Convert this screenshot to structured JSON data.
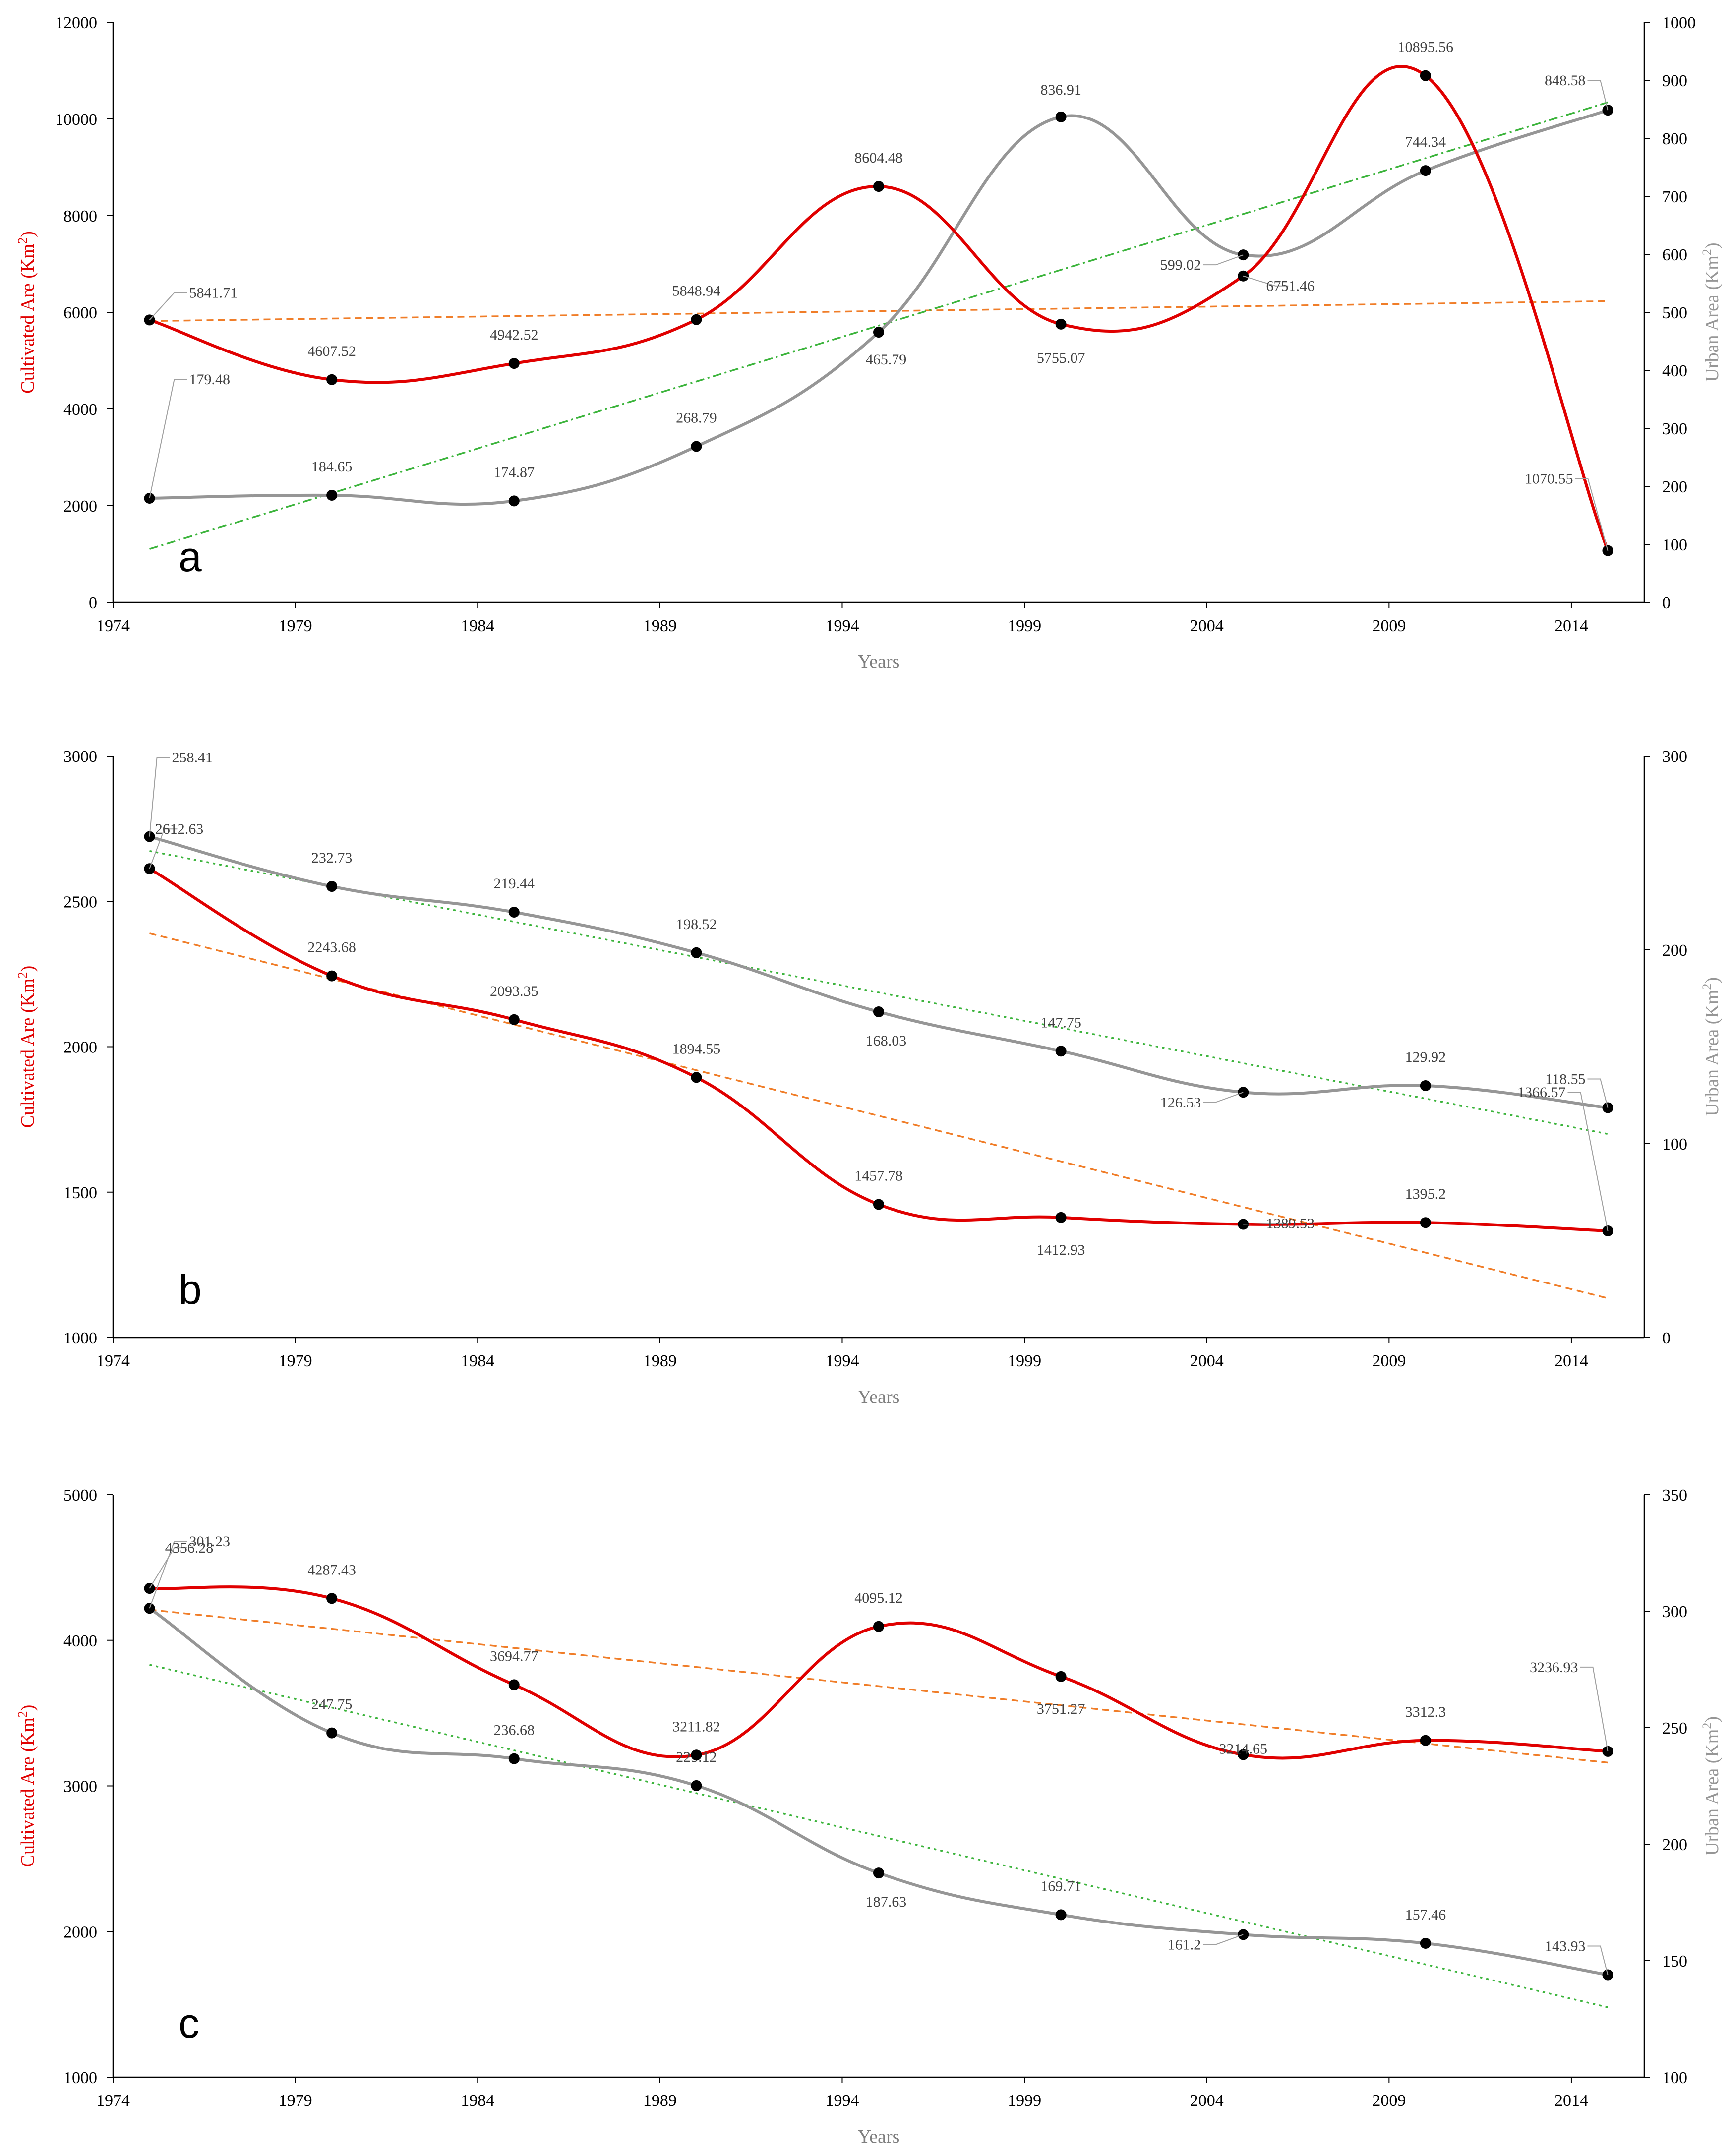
{
  "colors": {
    "cultivated": "#e00000",
    "urban": "#969696",
    "trend_cultivated": "#f07d28",
    "trend_urban": "#3cb43c",
    "axis": "#000000",
    "label": "#404040",
    "leader": "#a0a0a0"
  },
  "chart_data": [
    {
      "type": "line",
      "panel": "a",
      "xlabel": "Years",
      "ylabel_left": "Cultivated Are (Km2)",
      "ylabel_right": "Urban Area (Km2)",
      "xlim": [
        1974,
        2016
      ],
      "xticks": [
        1974,
        1979,
        1984,
        1989,
        1994,
        1999,
        2004,
        2009,
        2014
      ],
      "ylim_left": [
        0,
        12000
      ],
      "yticks_left": [
        0,
        2000,
        4000,
        6000,
        8000,
        10000,
        12000
      ],
      "ylim_right": [
        0,
        1000
      ],
      "yticks_right": [
        0,
        100,
        200,
        300,
        400,
        500,
        600,
        700,
        800,
        900,
        1000
      ],
      "x": [
        1975,
        1980,
        1985,
        1990,
        1995,
        2000,
        2005,
        2010,
        2015
      ],
      "series": [
        {
          "name": "Cultivated Area",
          "axis": "left",
          "values": [
            5841.71,
            4607.52,
            4942.52,
            5848.94,
            8604.48,
            5755.07,
            6751.46,
            10895.56,
            1070.55
          ],
          "labels": [
            "5841.71",
            "4607.52",
            "4942.52",
            "5848.94",
            "8604.48",
            "5755.07",
            "6751.46",
            "10895.56",
            "1070.55"
          ],
          "trend": [
            5820,
            6230
          ],
          "trend_style": "dash"
        },
        {
          "name": "Urban Area",
          "axis": "right",
          "values": [
            179.48,
            184.65,
            174.87,
            268.79,
            465.79,
            836.91,
            599.02,
            744.34,
            848.58
          ],
          "labels": [
            "179.48",
            "184.65",
            "174.87",
            "268.79",
            "465.79",
            "836.91",
            "599.02",
            "744.34",
            "848.58"
          ],
          "trend": [
            92,
            862
          ],
          "trend_style": "dashdot"
        }
      ]
    },
    {
      "type": "line",
      "panel": "b",
      "xlabel": "Years",
      "ylabel_left": "Cultivated Are (Km2)",
      "ylabel_right": "Urban Area (Km2)",
      "xlim": [
        1974,
        2016
      ],
      "xticks": [
        1974,
        1979,
        1984,
        1989,
        1994,
        1999,
        2004,
        2009,
        2014
      ],
      "ylim_left": [
        1000,
        3000
      ],
      "yticks_left": [
        1000,
        1500,
        2000,
        2500,
        3000
      ],
      "ylim_right": [
        0,
        300
      ],
      "yticks_right": [
        0,
        100,
        200,
        300
      ],
      "x": [
        1975,
        1980,
        1985,
        1990,
        1995,
        2000,
        2005,
        2010,
        2015
      ],
      "series": [
        {
          "name": "Cultivated Area",
          "axis": "left",
          "values": [
            2612.63,
            2243.68,
            2093.35,
            1894.55,
            1457.78,
            1412.93,
            1389.53,
            1395.2,
            1366.57
          ],
          "labels": [
            "2612.63",
            "2243.68",
            "2093.35",
            "1894.55",
            "1457.78",
            "1412.93",
            "1389.53",
            "1395.2",
            "1366.57"
          ],
          "trend": [
            2390,
            1135
          ],
          "trend_style": "dash"
        },
        {
          "name": "Urban Area",
          "axis": "right",
          "values": [
            258.41,
            232.73,
            219.44,
            198.52,
            168.03,
            147.75,
            126.53,
            129.92,
            118.55
          ],
          "labels": [
            "258.41",
            "232.73",
            "219.44",
            "198.52",
            "168.03",
            "147.75",
            "126.53",
            "129.92",
            "118.55"
          ],
          "trend": [
            251,
            105
          ],
          "trend_style": "dot"
        }
      ]
    },
    {
      "type": "line",
      "panel": "c",
      "xlabel": "Years",
      "ylabel_left": "Cultivated Are (Km2)",
      "ylabel_right": "Urban Area (Km2)",
      "xlim": [
        1974,
        2016
      ],
      "xticks": [
        1974,
        1979,
        1984,
        1989,
        1994,
        1999,
        2004,
        2009,
        2014
      ],
      "ylim_left": [
        1000,
        5000
      ],
      "yticks_left": [
        1000,
        2000,
        3000,
        4000,
        5000
      ],
      "ylim_right": [
        100,
        350
      ],
      "yticks_right": [
        100,
        150,
        200,
        250,
        300,
        350
      ],
      "x": [
        1975,
        1980,
        1985,
        1990,
        1995,
        2000,
        2005,
        2010,
        2015
      ],
      "series": [
        {
          "name": "Cultivated Area",
          "axis": "left",
          "values": [
            4356.28,
            4287.43,
            3694.77,
            3211.82,
            4095.12,
            3751.27,
            3214.65,
            3312.3,
            3236.93
          ],
          "labels": [
            "4356.28",
            "4287.43",
            "3694.77",
            "3211.82",
            "4095.12",
            "3751.27",
            "3214.65",
            "3312.3",
            "3236.93"
          ],
          "trend": [
            4210,
            3160
          ],
          "trend_style": "dash"
        },
        {
          "name": "Urban Area",
          "axis": "right",
          "values": [
            301.23,
            247.75,
            236.68,
            225.12,
            187.63,
            169.71,
            161.2,
            157.46,
            143.93
          ],
          "labels": [
            "301.23",
            "247.75",
            "236.68",
            "225.12",
            "187.63",
            "169.71",
            "161.2",
            "157.46",
            "143.93"
          ],
          "trend": [
            277,
            130
          ],
          "trend_style": "dot"
        }
      ]
    }
  ]
}
